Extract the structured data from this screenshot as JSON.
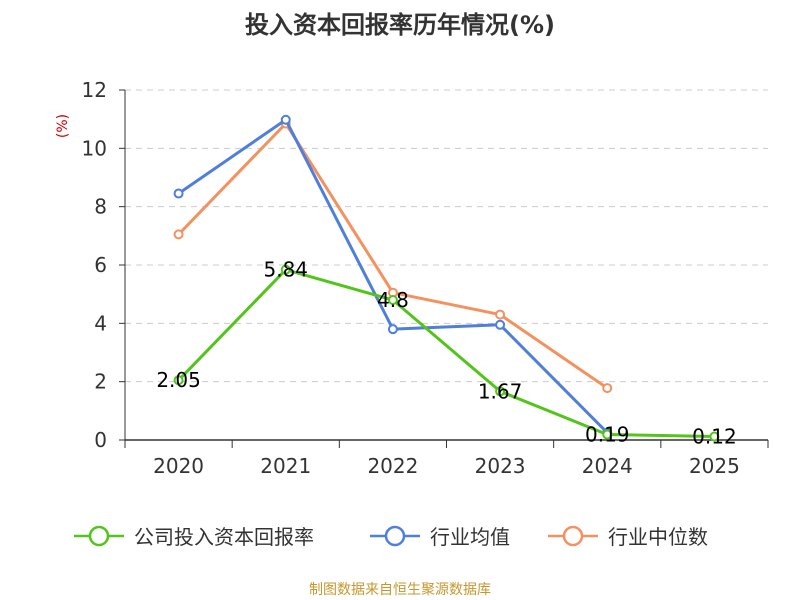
{
  "chart_data": {
    "type": "line",
    "title": "投入资本回报率历年情况(%)",
    "unit_label": "(%)",
    "categories": [
      "2020",
      "2021",
      "2022",
      "2023",
      "2024",
      "2025"
    ],
    "ylim": [
      0,
      12
    ],
    "yticks": [
      0,
      2,
      4,
      6,
      8,
      10,
      12
    ],
    "grid": true,
    "legend_position": "bottom",
    "series": [
      {
        "name": "公司投入资本回报率",
        "color": "#52c41a",
        "values": [
          2.05,
          5.84,
          4.8,
          1.67,
          0.19,
          0.12
        ],
        "labels": [
          "2.05",
          "5.84",
          "4.8",
          "1.67",
          "0.19",
          "0.12"
        ]
      },
      {
        "name": "行业均值",
        "color": "#4e7fdc",
        "values": [
          8.45,
          10.98,
          3.8,
          3.95,
          0.25,
          null
        ]
      },
      {
        "name": "行业中位数",
        "color": "#f4915e",
        "values": [
          7.05,
          10.85,
          5.05,
          4.3,
          1.78,
          null
        ]
      }
    ]
  },
  "source": "制图数据来自恒生聚源数据库"
}
